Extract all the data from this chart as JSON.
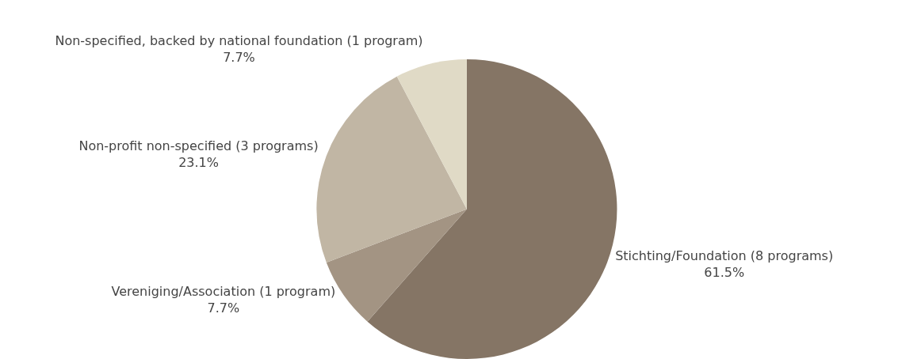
{
  "chart_data": {
    "type": "pie",
    "categories": [
      "Stichting/Foundation (8 programs)",
      "Vereniging/Association (1 program)",
      "Non-profit non-specified (3 programs)",
      "Non-specified, backed by national foundation (1 program)"
    ],
    "values": [
      61.5,
      7.7,
      23.1,
      7.7
    ],
    "value_labels": [
      "61.5%",
      "7.7%",
      "23.1%",
      "7.7%"
    ],
    "colors": [
      "#857565",
      "#a39483",
      "#c1b6a4",
      "#e0dac6"
    ],
    "legend": false
  }
}
